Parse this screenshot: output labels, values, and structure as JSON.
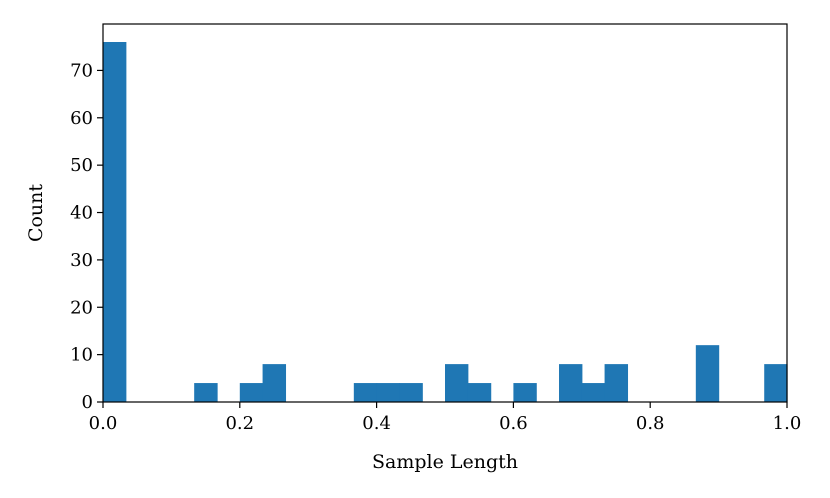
{
  "chart_data": {
    "type": "bar",
    "subtype": "histogram",
    "title": "",
    "xlabel": "Sample Length",
    "ylabel": "Count",
    "xlim": [
      0.0,
      1.0
    ],
    "ylim": [
      0,
      79.8
    ],
    "bin_width": 0.0333,
    "bins": [
      {
        "x0": 0.0,
        "x1": 0.0333,
        "count": 76
      },
      {
        "x0": 0.0333,
        "x1": 0.0667,
        "count": 0
      },
      {
        "x0": 0.0667,
        "x1": 0.1,
        "count": 0
      },
      {
        "x0": 0.1,
        "x1": 0.1333,
        "count": 0
      },
      {
        "x0": 0.1333,
        "x1": 0.1667,
        "count": 4
      },
      {
        "x0": 0.1667,
        "x1": 0.2,
        "count": 0
      },
      {
        "x0": 0.2,
        "x1": 0.2333,
        "count": 4
      },
      {
        "x0": 0.2333,
        "x1": 0.2667,
        "count": 8
      },
      {
        "x0": 0.2667,
        "x1": 0.3,
        "count": 0
      },
      {
        "x0": 0.3,
        "x1": 0.3333,
        "count": 0
      },
      {
        "x0": 0.3333,
        "x1": 0.3667,
        "count": 0
      },
      {
        "x0": 0.3667,
        "x1": 0.4,
        "count": 4
      },
      {
        "x0": 0.4,
        "x1": 0.4333,
        "count": 4
      },
      {
        "x0": 0.4333,
        "x1": 0.4667,
        "count": 4
      },
      {
        "x0": 0.4667,
        "x1": 0.5,
        "count": 0
      },
      {
        "x0": 0.5,
        "x1": 0.5333,
        "count": 8
      },
      {
        "x0": 0.5333,
        "x1": 0.5667,
        "count": 4
      },
      {
        "x0": 0.5667,
        "x1": 0.6,
        "count": 0
      },
      {
        "x0": 0.6,
        "x1": 0.6333,
        "count": 4
      },
      {
        "x0": 0.6333,
        "x1": 0.6667,
        "count": 0
      },
      {
        "x0": 0.6667,
        "x1": 0.7,
        "count": 8
      },
      {
        "x0": 0.7,
        "x1": 0.7333,
        "count": 4
      },
      {
        "x0": 0.7333,
        "x1": 0.7667,
        "count": 8
      },
      {
        "x0": 0.7667,
        "x1": 0.8,
        "count": 0
      },
      {
        "x0": 0.8,
        "x1": 0.8333,
        "count": 0
      },
      {
        "x0": 0.8333,
        "x1": 0.8667,
        "count": 0
      },
      {
        "x0": 0.8667,
        "x1": 0.9,
        "count": 12
      },
      {
        "x0": 0.9,
        "x1": 0.9333,
        "count": 0
      },
      {
        "x0": 0.9333,
        "x1": 0.9667,
        "count": 0
      },
      {
        "x0": 0.9667,
        "x1": 1.0,
        "count": 8
      }
    ],
    "x_ticks": [
      0.0,
      0.2,
      0.4,
      0.6,
      0.8,
      1.0
    ],
    "x_tick_labels": [
      "0.0",
      "0.2",
      "0.4",
      "0.6",
      "0.8",
      "1.0"
    ],
    "y_ticks": [
      0,
      10,
      20,
      30,
      40,
      50,
      60,
      70
    ],
    "y_tick_labels": [
      "0",
      "10",
      "20",
      "30",
      "40",
      "50",
      "60",
      "70"
    ],
    "grid": false,
    "legend": "none",
    "colors": {
      "bar": "#1f77b4",
      "axis": "#000000",
      "background": "#ffffff"
    }
  }
}
